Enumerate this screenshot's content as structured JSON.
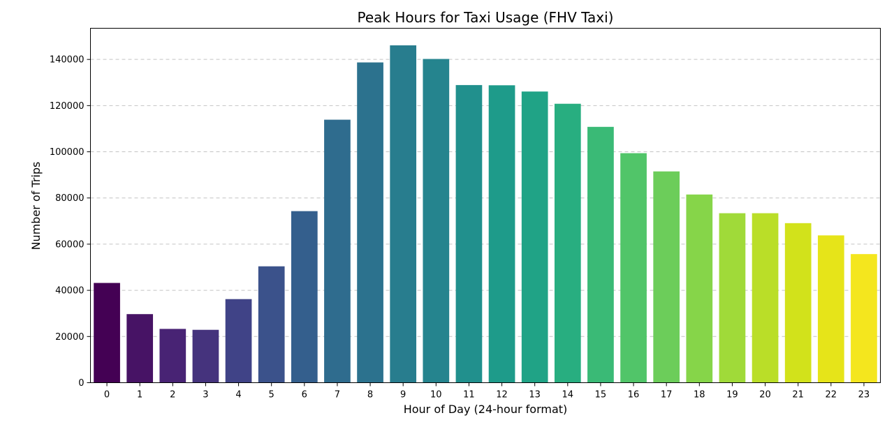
{
  "chart_data": {
    "type": "bar",
    "title": "Peak Hours for Taxi Usage (FHV Taxi)",
    "xlabel": "Hour of Day (24-hour format)",
    "ylabel": "Number of Trips",
    "categories": [
      "0",
      "1",
      "2",
      "3",
      "4",
      "5",
      "6",
      "7",
      "8",
      "9",
      "10",
      "11",
      "12",
      "13",
      "14",
      "15",
      "16",
      "17",
      "18",
      "19",
      "20",
      "21",
      "22",
      "23"
    ],
    "values": [
      43200,
      29700,
      23300,
      22900,
      36200,
      50400,
      74300,
      113900,
      138700,
      146100,
      140200,
      128900,
      128800,
      126100,
      120800,
      110800,
      99400,
      91500,
      81500,
      73400,
      73400,
      69100,
      63800,
      55700
    ],
    "ylim": [
      0,
      153500
    ],
    "yticks": [
      0,
      20000,
      40000,
      60000,
      80000,
      100000,
      120000,
      140000
    ],
    "ytick_labels": [
      "0",
      "20000",
      "40000",
      "60000",
      "80000",
      "100000",
      "120000",
      "140000"
    ],
    "grid": "y-dashed",
    "legend": "none",
    "colors": [
      "#440154",
      "#471365",
      "#482374",
      "#45337d",
      "#404387",
      "#3b528b",
      "#345f8d",
      "#2f6c8e",
      "#2c728e",
      "#287d8e",
      "#25848e",
      "#21908d",
      "#1e9b8a",
      "#20a386",
      "#28ae80",
      "#3aba76",
      "#51c569",
      "#6ccd5a",
      "#86d549",
      "#a0da39",
      "#bade28",
      "#d2e21b",
      "#e6e419",
      "#f4e61e"
    ]
  }
}
